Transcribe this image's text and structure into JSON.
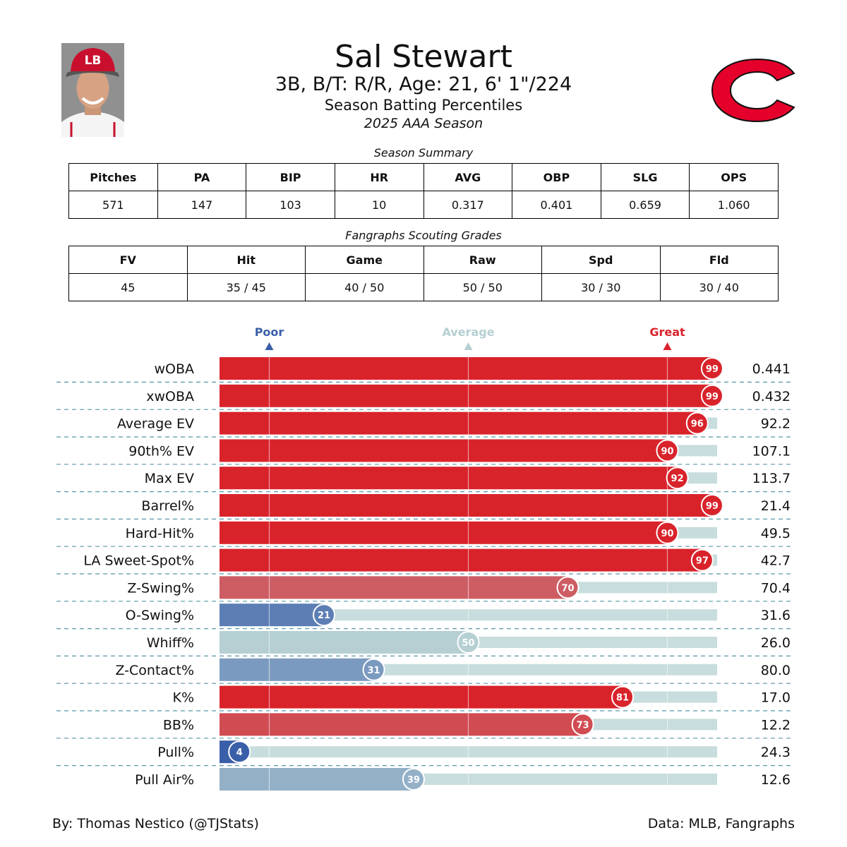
{
  "player": {
    "name": "Sal Stewart",
    "bio": "3B, B/T: R/R, Age: 21, 6' 1\"/224",
    "subtitle": "Season Batting Percentiles",
    "season": "2025 AAA Season"
  },
  "colors": {
    "great": "#d9232b",
    "poor": "#3a5fa9",
    "average": "#b5cfd3",
    "track": "#c8dddd",
    "separator": "#5b97a8"
  },
  "season_summary": {
    "caption": "Season Summary",
    "headers": [
      "Pitches",
      "PA",
      "BIP",
      "HR",
      "AVG",
      "OBP",
      "SLG",
      "OPS"
    ],
    "values": [
      "571",
      "147",
      "103",
      "10",
      "0.317",
      "0.401",
      "0.659",
      "1.060"
    ]
  },
  "scouting": {
    "caption": "Fangraphs Scouting Grades",
    "headers": [
      "FV",
      "Hit",
      "Game",
      "Raw",
      "Spd",
      "Fld"
    ],
    "values": [
      "45",
      "35 / 45",
      "40 / 50",
      "50 / 50",
      "30 / 30",
      "30 / 40"
    ]
  },
  "chart_data": {
    "type": "bar",
    "orientation": "horizontal",
    "title": "Season Batting Percentiles",
    "scale_labels": [
      "Poor",
      "Average",
      "Great"
    ],
    "scale_positions": [
      10,
      50,
      90
    ],
    "xlim": [
      0,
      100
    ],
    "categories": [
      "wOBA",
      "xwOBA",
      "Average EV",
      "90th% EV",
      "Max EV",
      "Barrel%",
      "Hard-Hit%",
      "LA Sweet-Spot%",
      "Z-Swing%",
      "O-Swing%",
      "Whiff%",
      "Z-Contact%",
      "K%",
      "BB%",
      "Pull%",
      "Pull Air%"
    ],
    "percentiles": [
      99,
      99,
      96,
      90,
      92,
      99,
      90,
      97,
      70,
      21,
      50,
      31,
      81,
      73,
      4,
      39
    ],
    "stat_values": [
      "0.441",
      "0.432",
      "92.2",
      "107.1",
      "113.7",
      "21.4",
      "49.5",
      "42.7",
      "70.4",
      "31.6",
      "26.0",
      "80.0",
      "17.0",
      "12.2",
      "24.3",
      "12.6"
    ]
  },
  "footer": {
    "credit": "By: Thomas Nestico (@TJStats)",
    "source": "Data: MLB, Fangraphs"
  }
}
